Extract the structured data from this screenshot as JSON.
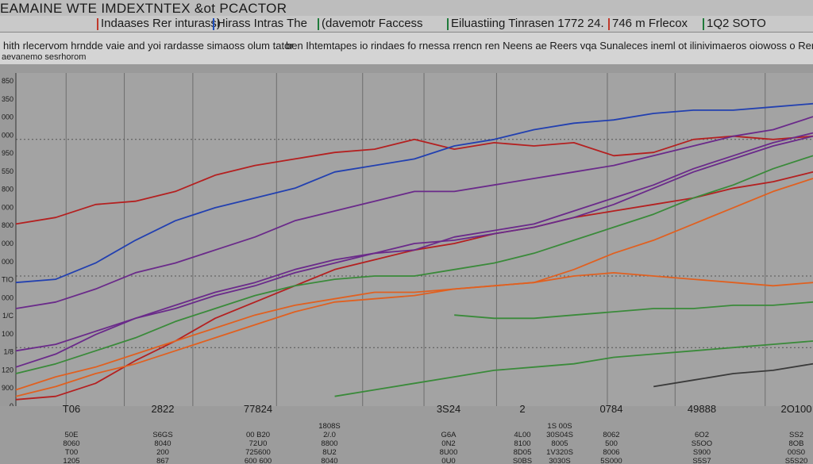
{
  "header": {
    "title": "EAMAINE WTE IMDEXTNTEX  &ot PCACTOR"
  },
  "legend": {
    "items": [
      {
        "label": "Indaases Rer inturass)",
        "color": "#c0392b"
      },
      {
        "label": "Hirass  Intras The",
        "color": "#1f4fbf"
      },
      {
        "label": "(davemotr Faccess",
        "color": "#1f7a3a"
      },
      {
        "label": "Eiluastiing Tinrasen 1772 24.",
        "color": "#1f7a3a"
      },
      {
        "label": "746 m Frlecox",
        "color": "#c0392b"
      },
      {
        "label": "1Q2 SOTO",
        "color": "#1f7a3a"
      }
    ]
  },
  "subtitle": {
    "line1_a": "hith rlecervom hrndde vaie and yoi rardasse simaoss olum tator",
    "line1_b": "ben Ihtemtapes io rindaes fo rnessa rrencn ren Neens ae Reers vqa Sunaleces ineml ot ilinivimaeros oiowoss o Reracess",
    "line2": "aevanemo sesrhorom"
  },
  "chart_data": {
    "type": "line",
    "title": "EAMAINE WTE IMDEXTNTEX  &ot PCACTOR",
    "xlabel": "",
    "ylabel": "",
    "y_tick_labels": [
      "850",
      "350",
      "000",
      "000",
      "950",
      "550",
      "800",
      "000",
      "800",
      "000",
      "000",
      "TIO",
      "000",
      "1/C",
      "100",
      "1/8",
      "120",
      "900",
      "0"
    ],
    "x_labels_top": [
      "T06",
      "2822",
      "77824",
      "3S24",
      "2",
      "0784",
      "49888",
      "2O100"
    ],
    "x_label_columns": [
      [
        "T06",
        "50E",
        "8060",
        "T00",
        "1205"
      ],
      [
        "2822",
        "S6GS",
        "8040",
        "200",
        "867"
      ],
      [
        "77824",
        "00 B20",
        "72U0",
        "725600",
        "600 600"
      ],
      [
        "1808S",
        "2/.0",
        "8800",
        "8U2",
        "8040"
      ],
      [
        "3S24",
        "G6A",
        "0N2",
        "8U00",
        "0U0"
      ],
      [
        "2",
        "4L00",
        "8100",
        "8D05",
        "S0BS"
      ],
      [
        "1S 00S",
        "30S04S",
        "8005",
        "1V320S",
        "3030S"
      ],
      [
        "0784",
        "8062",
        "500",
        "8006",
        "5S000"
      ],
      [
        "49888",
        "6O2",
        "S5OO",
        "S900",
        "S5S7"
      ],
      [
        "2O100",
        "SS2",
        "8OB",
        "00S0",
        "S5S20"
      ]
    ],
    "grid": true,
    "ylim": [
      0,
      100
    ],
    "x": [
      0,
      1,
      2,
      3,
      4,
      5,
      6,
      7,
      8,
      9,
      10,
      11,
      12,
      13,
      14,
      15,
      16,
      17,
      18,
      19,
      20
    ],
    "series": [
      {
        "color": "#b42020",
        "values": [
          56,
          58,
          62,
          63,
          66,
          71,
          74,
          76,
          78,
          79,
          82,
          79,
          81,
          80,
          81,
          77,
          78,
          82,
          83,
          82,
          83
        ]
      },
      {
        "color": "#b42020",
        "values": [
          2,
          3,
          7,
          14,
          20,
          27,
          32,
          37,
          42,
          45,
          48,
          50,
          53,
          55,
          58,
          60,
          62,
          64,
          67,
          69,
          72
        ]
      },
      {
        "color": "#2240b0",
        "values": [
          38,
          39,
          44,
          51,
          57,
          61,
          64,
          67,
          72,
          74,
          76,
          80,
          82,
          85,
          87,
          88,
          90,
          91,
          91,
          92,
          93
        ]
      },
      {
        "color": "#6a2a8a",
        "values": [
          30,
          32,
          36,
          41,
          44,
          48,
          52,
          57,
          60,
          63,
          66,
          66,
          68,
          70,
          72,
          74,
          77,
          80,
          83,
          85,
          89
        ]
      },
      {
        "color": "#6a2a8a",
        "values": [
          17,
          19,
          23,
          27,
          30,
          34,
          37,
          41,
          44,
          47,
          50,
          51,
          53,
          55,
          58,
          62,
          67,
          72,
          76,
          80,
          83
        ]
      },
      {
        "color": "#6a2a8a",
        "values": [
          12,
          16,
          22,
          27,
          31,
          35,
          38,
          42,
          45,
          47,
          48,
          52,
          54,
          56,
          60,
          64,
          68,
          73,
          77,
          81,
          84
        ]
      },
      {
        "color": "#3a8a3a",
        "values": [
          10,
          13,
          17,
          21,
          26,
          30,
          34,
          37,
          39,
          40,
          40,
          42,
          44,
          47,
          51,
          55,
          59,
          64,
          68,
          73,
          77
        ]
      },
      {
        "color": "#3a8a3a",
        "values": [
          null,
          null,
          null,
          null,
          null,
          null,
          null,
          null,
          null,
          null,
          null,
          28,
          27,
          27,
          28,
          29,
          30,
          30,
          31,
          31,
          32
        ]
      },
      {
        "color": "#e06020",
        "values": [
          5,
          9,
          12,
          16,
          20,
          24,
          28,
          31,
          33,
          35,
          35,
          36,
          37,
          38,
          42,
          47,
          51,
          56,
          61,
          66,
          70
        ]
      },
      {
        "color": "#e06020",
        "values": [
          3,
          6,
          10,
          13,
          17,
          21,
          25,
          29,
          32,
          33,
          34,
          36,
          37,
          38,
          40,
          41,
          40,
          39,
          38,
          37,
          38
        ]
      },
      {
        "color": "#3a3a3a",
        "values": [
          null,
          null,
          null,
          null,
          null,
          null,
          null,
          null,
          null,
          null,
          null,
          null,
          null,
          null,
          null,
          null,
          6,
          8,
          10,
          11,
          13
        ]
      },
      {
        "color": "#3a8a3a",
        "values": [
          null,
          null,
          null,
          null,
          null,
          null,
          null,
          null,
          3,
          5,
          7,
          9,
          11,
          12,
          13,
          15,
          16,
          17,
          18,
          19,
          20
        ]
      }
    ]
  }
}
